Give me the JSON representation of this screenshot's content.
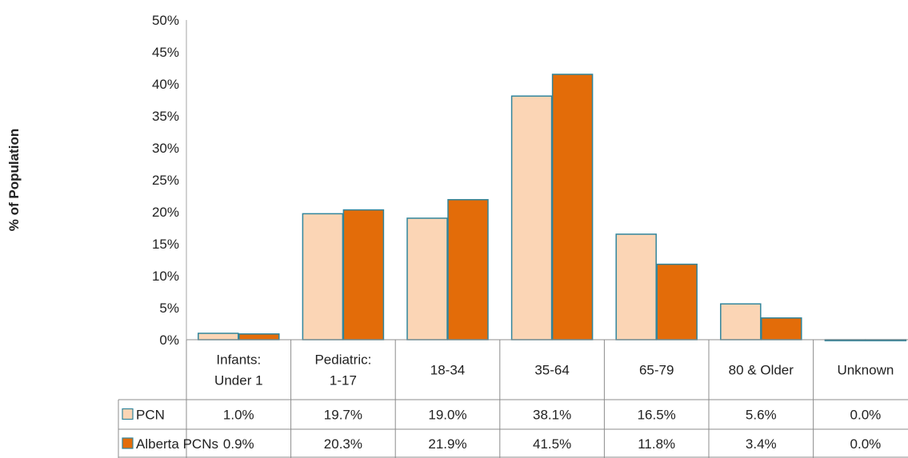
{
  "chart_data": {
    "type": "bar",
    "title": "",
    "xlabel": "",
    "ylabel": "% of Population",
    "ylim": [
      0,
      50
    ],
    "yticks": [
      "0%",
      "5%",
      "10%",
      "15%",
      "20%",
      "25%",
      "30%",
      "35%",
      "40%",
      "45%",
      "50%"
    ],
    "grid": false,
    "legend": "data-table",
    "categories": [
      [
        "Infants:",
        "Under 1"
      ],
      [
        "Pediatric:",
        "1-17"
      ],
      [
        "18-34"
      ],
      [
        "35-64"
      ],
      [
        "65-79"
      ],
      [
        "80 & Older"
      ],
      [
        "Unknown"
      ]
    ],
    "series": [
      {
        "name": "PCN",
        "color": "#fbd5b5",
        "values": [
          1.0,
          19.7,
          19.0,
          38.1,
          16.5,
          5.6,
          0.0
        ],
        "labels": [
          "1.0%",
          "19.7%",
          "19.0%",
          "38.1%",
          "16.5%",
          "5.6%",
          "0.0%"
        ]
      },
      {
        "name": "Alberta PCNs",
        "color": "#e36c09",
        "values": [
          0.9,
          20.3,
          21.9,
          41.5,
          11.8,
          3.4,
          0.0
        ],
        "labels": [
          "0.9%",
          "20.3%",
          "21.9%",
          "41.5%",
          "11.8%",
          "3.4%",
          "0.0%"
        ]
      }
    ],
    "bar_outline_color": "#31859c"
  }
}
